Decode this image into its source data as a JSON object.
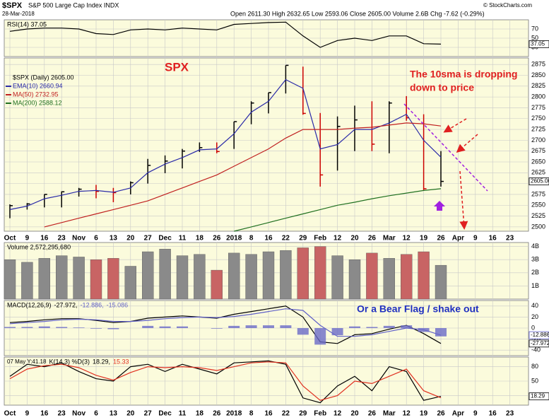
{
  "header": {
    "symbol": "$SPX",
    "name": "S&P 500 Large Cap Index INDX",
    "date": "28-Mar-2018",
    "quote": "Open 2611.30 High 2632.65 Low 2593.06 Close 2605.00 Volume 2.6B Chg -7.62 (-0.29%)",
    "credit": "© StockCharts.com"
  },
  "chart_data": [
    {
      "type": "line",
      "title": "RSI(14) 37.05",
      "ylim": [
        10,
        90
      ],
      "yticks": [
        30,
        50,
        70
      ],
      "series": [
        {
          "name": "RSI(14)",
          "color": "#000000",
          "end_label": "37.05",
          "values": [
            65,
            70,
            72,
            72,
            70,
            60,
            58,
            68,
            70,
            68,
            72,
            70,
            68,
            80,
            82,
            84,
            85,
            55,
            30,
            45,
            50,
            45,
            55,
            55,
            38,
            37.05,
            null,
            null,
            null,
            null
          ]
        }
      ]
    },
    {
      "type": "ohlc",
      "title": "$SPX (Daily) 2605.00",
      "up_color": "#000000",
      "down_color": "#cc0000",
      "close_label": "2605.00",
      "categories": [
        "Oct",
        "9",
        "16",
        "23",
        "Nov",
        "6",
        "13",
        "20",
        "27",
        "Dec",
        "11",
        "18",
        "26",
        "2018",
        "8",
        "16",
        "22",
        "29",
        "Feb",
        "12",
        "20",
        "26",
        "Mar",
        "12",
        "19",
        "26",
        "Apr",
        "9",
        "16",
        "23"
      ],
      "high": [
        2552,
        2555,
        2575,
        2582,
        2590,
        2597,
        2590,
        2605,
        2657,
        2665,
        2680,
        2695,
        2695,
        2743,
        2790,
        2810,
        2873,
        2870,
        2763,
        2755,
        2780,
        2790,
        2790,
        2802,
        2760,
        2675,
        null,
        null,
        null,
        null
      ],
      "low": [
        2520,
        2540,
        2545,
        2545,
        2570,
        2566,
        2557,
        2575,
        2600,
        2624,
        2635,
        2673,
        2670,
        2680,
        2737,
        2762,
        2808,
        2759,
        2593,
        2630,
        2675,
        2675,
        2670,
        2745,
        2585,
        2593,
        null,
        null,
        null,
        null
      ],
      "close": [
        2549,
        2553,
        2575,
        2581,
        2587,
        2582,
        2579,
        2602,
        2642,
        2652,
        2675,
        2683,
        2674,
        2743,
        2786,
        2810,
        2873,
        2762,
        2620,
        2732,
        2747,
        2691,
        2786,
        2752,
        2588,
        2605,
        null,
        null,
        null,
        null
      ],
      "ylim": [
        2490,
        2890
      ],
      "yticks": [
        2500,
        2525,
        2550,
        2575,
        2600,
        2625,
        2650,
        2675,
        2700,
        2725,
        2750,
        2775,
        2800,
        2825,
        2850,
        2875
      ],
      "annotations": [
        "SPX",
        "The 10sma is dropping",
        "down to price"
      ],
      "series": [
        {
          "name": "EMA(10) 2660.94",
          "color": "#2a2aa8",
          "values": [
            2540,
            2548,
            2565,
            2573,
            2582,
            2584,
            2580,
            2590,
            2625,
            2645,
            2660,
            2678,
            2680,
            2715,
            2765,
            2790,
            2840,
            2820,
            2680,
            2690,
            2725,
            2725,
            2740,
            2760,
            2700,
            2660.94,
            null,
            null,
            null,
            null
          ]
        },
        {
          "name": "MA(50) 2732.95",
          "color": "#c02020",
          "values": [
            null,
            null,
            2500,
            2510,
            2520,
            2530,
            2540,
            2550,
            2560,
            2575,
            2590,
            2605,
            2620,
            2640,
            2660,
            2680,
            2705,
            2725,
            2725,
            2725,
            2728,
            2730,
            2735,
            2740,
            2738,
            2732.95,
            null,
            null,
            null,
            null
          ]
        },
        {
          "name": "MA(200) 2588.12",
          "color": "#207020",
          "values": [
            null,
            null,
            null,
            null,
            null,
            null,
            null,
            null,
            null,
            null,
            null,
            null,
            null,
            2490,
            2500,
            2510,
            2520,
            2530,
            2540,
            2550,
            2557,
            2565,
            2572,
            2578,
            2584,
            2588.12,
            null,
            null,
            null,
            null
          ]
        }
      ]
    },
    {
      "type": "bar",
      "title": "Volume 2,572,295,680",
      "up_color": "#8a8a8a",
      "down_color": "#c86464",
      "values": [
        3000000000,
        2800000000,
        3100000000,
        3300000000,
        3200000000,
        3000000000,
        3100000000,
        2500000000,
        3600000000,
        3800000000,
        3300000000,
        3400000000,
        2200000000,
        3500000000,
        3400000000,
        3600000000,
        3700000000,
        3900000000,
        4000000000,
        3300000000,
        3000000000,
        3500000000,
        3100000000,
        3400000000,
        3600000000,
        2572295680,
        null,
        null,
        null,
        null
      ],
      "ylim": [
        0,
        4300000000
      ],
      "yticks": [
        {
          "value": 1000000000,
          "label": "1B"
        },
        {
          "value": 2000000000,
          "label": "2B"
        },
        {
          "value": 3000000000,
          "label": "3B"
        },
        {
          "value": 4000000000,
          "label": "4B"
        }
      ]
    },
    {
      "type": "line",
      "title": "MACD(12,26,9)",
      "ylim": [
        -50,
        50
      ],
      "yticks": [
        -40,
        -20,
        0,
        20,
        40
      ],
      "annotations": [
        "Or a Bear Flag / shake out"
      ],
      "series": [
        {
          "name": "-27.972,",
          "color": "#000000",
          "end_label": "-27.972",
          "values": [
            10,
            12,
            15,
            17,
            17,
            14,
            10,
            12,
            18,
            20,
            22,
            20,
            18,
            25,
            30,
            35,
            40,
            20,
            -25,
            -28,
            -12,
            -10,
            -2,
            5,
            -10,
            -27.972,
            null,
            null,
            null,
            null
          ]
        },
        {
          "name": "-12.886,",
          "color": "#6060c8",
          "end_label": "-12.886",
          "values": [
            8,
            10,
            12,
            15,
            16,
            15,
            12,
            12,
            14,
            17,
            19,
            20,
            19,
            21,
            25,
            30,
            35,
            32,
            5,
            -15,
            -15,
            -12,
            -6,
            0,
            -3,
            -12.886,
            null,
            null,
            null,
            null
          ]
        },
        {
          "name": "-15.086",
          "color": "#6a6ac8",
          "type": "bar",
          "values": [
            2,
            2,
            3,
            2,
            1,
            -1,
            -2,
            0,
            4,
            3,
            3,
            0,
            -1,
            4,
            5,
            5,
            5,
            -12,
            -30,
            -13,
            3,
            2,
            4,
            5,
            -7,
            -15.086,
            null,
            null,
            null,
            null
          ]
        }
      ]
    },
    {
      "type": "line",
      "title": "K(14,3) %D(3)",
      "note": "07 May Y:41.18",
      "categories": [
        "Oct",
        "9",
        "16",
        "23",
        "Nov",
        "6",
        "13",
        "20",
        "27",
        "Dec",
        "11",
        "18",
        "26",
        "2018",
        "8",
        "16",
        "22",
        "29",
        "Feb",
        "12",
        "20",
        "26",
        "Mar",
        "12",
        "19",
        "26",
        "Apr",
        "9",
        "16",
        "23"
      ],
      "ylim": [
        0,
        100
      ],
      "yticks": [
        20,
        50,
        80
      ],
      "series": [
        {
          "name": "18.29,",
          "color": "#000000",
          "end_label": "18.29",
          "values": [
            60,
            85,
            80,
            88,
            70,
            55,
            50,
            80,
            85,
            70,
            85,
            75,
            65,
            88,
            90,
            92,
            85,
            15,
            5,
            40,
            60,
            30,
            80,
            70,
            10,
            18.29,
            null,
            null,
            null,
            null
          ]
        },
        {
          "name": "15.33",
          "color": "#e03020",
          "values": [
            55,
            75,
            82,
            85,
            78,
            62,
            52,
            68,
            80,
            78,
            80,
            78,
            72,
            80,
            88,
            90,
            88,
            40,
            10,
            20,
            50,
            45,
            60,
            75,
            30,
            15.33,
            null,
            null,
            null,
            null
          ]
        }
      ]
    }
  ]
}
